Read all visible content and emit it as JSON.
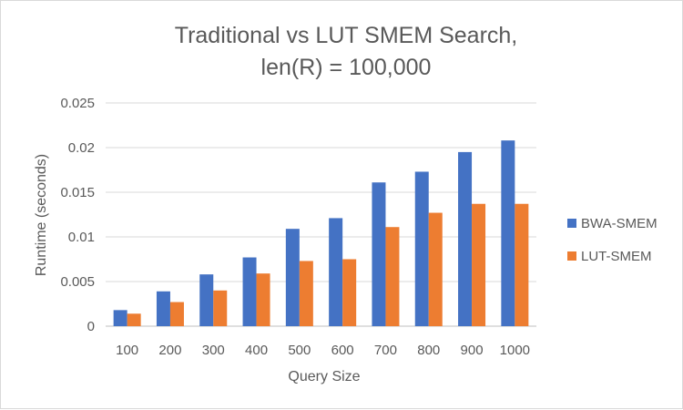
{
  "chart_data": {
    "type": "bar",
    "title_line1": "Traditional vs LUT SMEM Search,",
    "title_line2": "len(R) = 100,000",
    "xlabel": "Query Size",
    "ylabel": "Runtime (seconds)",
    "categories": [
      "100",
      "200",
      "300",
      "400",
      "500",
      "600",
      "700",
      "800",
      "900",
      "1000"
    ],
    "ylim": [
      0,
      0.025
    ],
    "yticks": [
      0,
      0.005,
      0.01,
      0.015,
      0.02,
      0.025
    ],
    "ytick_labels": [
      "0",
      "0.005",
      "0.01",
      "0.015",
      "0.02",
      "0.025"
    ],
    "grid": true,
    "legend_position": "right",
    "series": [
      {
        "name": "BWA-SMEM",
        "color": "#4472C4",
        "values": [
          0.0018,
          0.0039,
          0.0058,
          0.0077,
          0.0109,
          0.0121,
          0.0161,
          0.0173,
          0.0195,
          0.0208
        ]
      },
      {
        "name": "LUT-SMEM",
        "color": "#ED7D31",
        "values": [
          0.0014,
          0.0027,
          0.004,
          0.0059,
          0.0073,
          0.0075,
          0.0111,
          0.0127,
          0.0137,
          0.0137
        ]
      }
    ]
  }
}
